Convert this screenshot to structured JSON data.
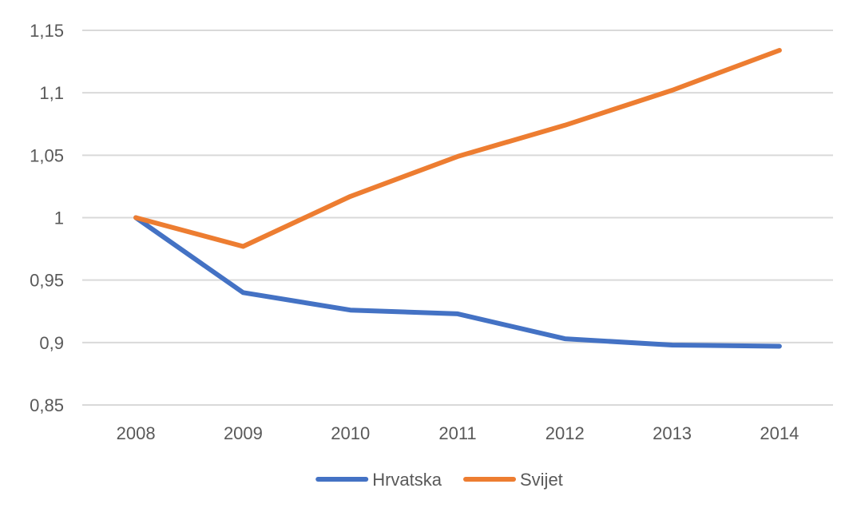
{
  "chart_data": {
    "type": "line",
    "title": "",
    "xlabel": "",
    "ylabel": "",
    "categories": [
      "2008",
      "2009",
      "2010",
      "2011",
      "2012",
      "2013",
      "2014"
    ],
    "ylim": [
      0.85,
      1.15
    ],
    "yticks": [
      0.85,
      0.9,
      0.95,
      1,
      1.05,
      1.1,
      1.15
    ],
    "ytick_labels": [
      "0,85",
      "0,9",
      "0,95",
      "1",
      "1,05",
      "1,1",
      "1,15"
    ],
    "grid": true,
    "legend_position": "bottom-center",
    "series": [
      {
        "name": "Hrvatska",
        "color": "#4472c4",
        "values": [
          1.0,
          0.94,
          0.926,
          0.923,
          0.903,
          0.898,
          0.897
        ]
      },
      {
        "name": "Svijet",
        "color": "#ed7d31",
        "values": [
          1.0,
          0.977,
          1.017,
          1.049,
          1.074,
          1.102,
          1.134
        ]
      }
    ]
  }
}
